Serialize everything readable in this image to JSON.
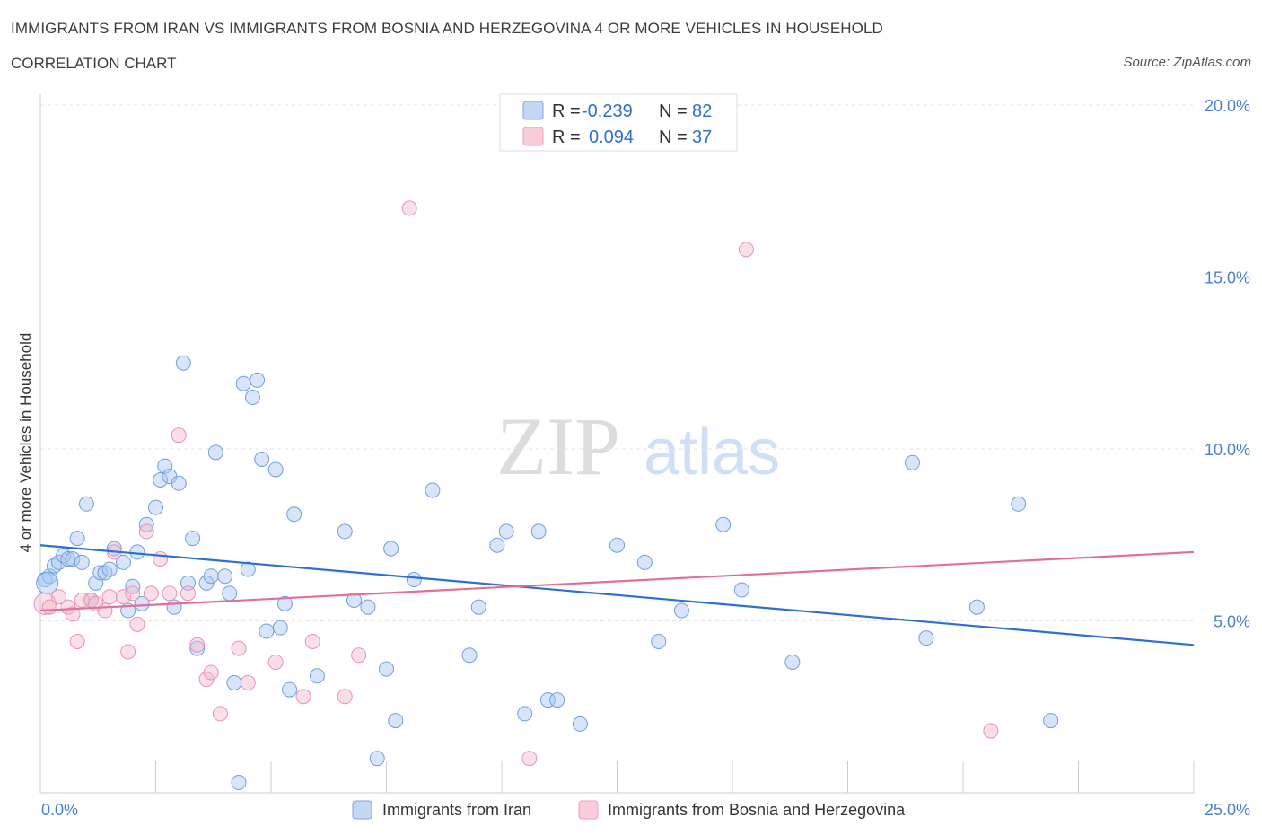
{
  "header": {
    "title": "IMMIGRANTS FROM IRAN VS IMMIGRANTS FROM BOSNIA AND HERZEGOVINA 4 OR MORE VEHICLES IN HOUSEHOLD",
    "subtitle": "CORRELATION CHART",
    "source": "Source: ZipAtlas.com"
  },
  "watermark": {
    "zip": "ZIP",
    "atlas": "atlas"
  },
  "stats_legend": {
    "iran": {
      "r_label": "R =",
      "r_value": "-0.239",
      "n_label": "N =",
      "n_value": "82"
    },
    "bosnia": {
      "r_label": "R =",
      "r_value": "0.094",
      "n_label": "N =",
      "n_value": "37"
    }
  },
  "chart_data": {
    "type": "scatter",
    "title": "IMMIGRANTS FROM IRAN VS IMMIGRANTS FROM BOSNIA AND HERZEGOVINA 4 OR MORE VEHICLES IN HOUSEHOLD",
    "xlabel": "",
    "ylabel": "4 or more Vehicles in Household",
    "xlim": [
      0,
      25
    ],
    "ylim": [
      0,
      20
    ],
    "x_tick_labels": {
      "min": "0.0%",
      "max": "25.0%"
    },
    "y_ticks": [
      {
        "value": 5,
        "label": "5.0%"
      },
      {
        "value": 10,
        "label": "10.0%"
      },
      {
        "value": 15,
        "label": "15.0%"
      },
      {
        "value": 20,
        "label": "20.0%"
      }
    ],
    "colors": {
      "iran": "#a9c6f2",
      "iran_line": "#2f6fce",
      "bosnia": "#f5b8cc",
      "bosnia_line": "#e0709a",
      "tick": "#4a7fd0"
    },
    "series": [
      {
        "name": "Immigrants from Iran",
        "trend": {
          "x": [
            0,
            25
          ],
          "y": [
            7.2,
            4.3
          ]
        },
        "points": [
          [
            0.1,
            6.2
          ],
          [
            0.2,
            6.3
          ],
          [
            0.3,
            6.6
          ],
          [
            0.4,
            6.7
          ],
          [
            0.5,
            6.9
          ],
          [
            0.6,
            6.8
          ],
          [
            0.7,
            6.8
          ],
          [
            0.8,
            7.4
          ],
          [
            0.9,
            6.7
          ],
          [
            1.0,
            8.4
          ],
          [
            1.1,
            5.6
          ],
          [
            1.2,
            6.1
          ],
          [
            1.3,
            6.4
          ],
          [
            1.4,
            6.4
          ],
          [
            1.5,
            6.5
          ],
          [
            1.6,
            7.1
          ],
          [
            1.8,
            6.7
          ],
          [
            1.9,
            5.3
          ],
          [
            2.0,
            6.0
          ],
          [
            2.1,
            7.0
          ],
          [
            2.2,
            5.5
          ],
          [
            2.3,
            7.8
          ],
          [
            2.5,
            8.3
          ],
          [
            2.6,
            9.1
          ],
          [
            2.7,
            9.5
          ],
          [
            2.8,
            9.2
          ],
          [
            2.9,
            5.4
          ],
          [
            3.0,
            9.0
          ],
          [
            3.1,
            12.5
          ],
          [
            3.2,
            6.1
          ],
          [
            3.3,
            7.4
          ],
          [
            3.4,
            4.2
          ],
          [
            3.6,
            6.1
          ],
          [
            3.7,
            6.3
          ],
          [
            3.8,
            9.9
          ],
          [
            4.0,
            6.3
          ],
          [
            4.1,
            5.8
          ],
          [
            4.2,
            3.2
          ],
          [
            4.3,
            0.3
          ],
          [
            4.4,
            11.9
          ],
          [
            4.5,
            6.5
          ],
          [
            4.6,
            11.5
          ],
          [
            4.7,
            12.0
          ],
          [
            4.8,
            9.7
          ],
          [
            4.9,
            4.7
          ],
          [
            5.1,
            9.4
          ],
          [
            5.2,
            4.8
          ],
          [
            5.3,
            5.5
          ],
          [
            5.4,
            3.0
          ],
          [
            5.5,
            8.1
          ],
          [
            6.0,
            3.4
          ],
          [
            6.6,
            7.6
          ],
          [
            6.8,
            5.6
          ],
          [
            7.1,
            5.4
          ],
          [
            7.3,
            1.0
          ],
          [
            7.5,
            3.6
          ],
          [
            7.6,
            7.1
          ],
          [
            7.7,
            2.1
          ],
          [
            8.1,
            6.2
          ],
          [
            8.5,
            8.8
          ],
          [
            9.3,
            4.0
          ],
          [
            9.5,
            5.4
          ],
          [
            9.9,
            7.2
          ],
          [
            10.1,
            7.6
          ],
          [
            10.5,
            2.3
          ],
          [
            10.8,
            7.6
          ],
          [
            11.0,
            2.7
          ],
          [
            11.2,
            2.7
          ],
          [
            11.7,
            2.0
          ],
          [
            12.5,
            7.2
          ],
          [
            13.1,
            6.7
          ],
          [
            13.4,
            4.4
          ],
          [
            13.9,
            5.3
          ],
          [
            14.8,
            7.8
          ],
          [
            15.2,
            5.9
          ],
          [
            16.3,
            3.8
          ],
          [
            18.9,
            9.6
          ],
          [
            19.2,
            4.5
          ],
          [
            20.3,
            5.4
          ],
          [
            21.2,
            8.4
          ],
          [
            21.9,
            2.1
          ],
          [
            0.15,
            6.1
          ]
        ]
      },
      {
        "name": "Immigrants from Bosnia and Herzegovina",
        "trend": {
          "x": [
            0,
            25
          ],
          "y": [
            5.3,
            7.0
          ]
        },
        "points": [
          [
            0.1,
            5.5
          ],
          [
            0.2,
            5.4
          ],
          [
            0.4,
            5.7
          ],
          [
            0.6,
            5.4
          ],
          [
            0.7,
            5.2
          ],
          [
            0.8,
            4.4
          ],
          [
            0.9,
            5.6
          ],
          [
            1.1,
            5.6
          ],
          [
            1.2,
            5.5
          ],
          [
            1.4,
            5.3
          ],
          [
            1.5,
            5.7
          ],
          [
            1.6,
            7.0
          ],
          [
            1.8,
            5.7
          ],
          [
            1.9,
            4.1
          ],
          [
            2.0,
            5.8
          ],
          [
            2.1,
            4.9
          ],
          [
            2.3,
            7.6
          ],
          [
            2.4,
            5.8
          ],
          [
            2.6,
            6.8
          ],
          [
            2.8,
            5.8
          ],
          [
            3.0,
            10.4
          ],
          [
            3.2,
            5.8
          ],
          [
            3.4,
            4.3
          ],
          [
            3.6,
            3.3
          ],
          [
            3.7,
            3.5
          ],
          [
            3.9,
            2.3
          ],
          [
            4.3,
            4.2
          ],
          [
            4.5,
            3.2
          ],
          [
            5.1,
            3.8
          ],
          [
            5.7,
            2.8
          ],
          [
            5.9,
            4.4
          ],
          [
            6.6,
            2.8
          ],
          [
            6.9,
            4.0
          ],
          [
            8.0,
            17.0
          ],
          [
            10.6,
            1.0
          ],
          [
            15.3,
            15.8
          ],
          [
            20.6,
            1.8
          ]
        ]
      }
    ]
  },
  "bottom_legend": {
    "iran_label": "Immigrants from Iran",
    "bosnia_label": "Immigrants from Bosnia and Herzegovina"
  }
}
